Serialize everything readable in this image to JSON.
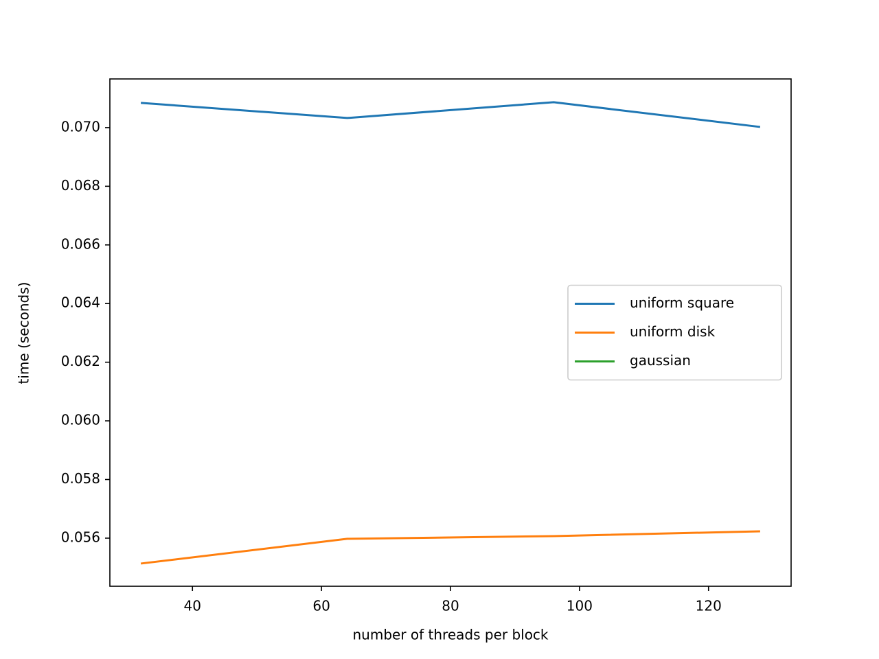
{
  "chart_data": {
    "type": "line",
    "xlabel": "number of threads per block",
    "ylabel": "time (seconds)",
    "x": [
      32,
      64,
      96,
      128
    ],
    "series": [
      {
        "name": "uniform square",
        "color": "#1f77b4",
        "values": [
          0.070843,
          0.070328,
          0.070866,
          0.070023
        ]
      },
      {
        "name": "uniform disk",
        "color": "#ff7f0e",
        "values": [
          0.055134,
          0.055977,
          0.05607,
          0.056234
        ]
      },
      {
        "name": "gaussian",
        "color": "#2ca02c",
        "values": [
          null,
          null,
          null,
          null
        ]
      }
    ],
    "xlim": [
      27.2,
      132.8
    ],
    "xticks": [
      40,
      60,
      80,
      100,
      120
    ],
    "ylim": [
      0.05436,
      0.07166
    ],
    "yticks": [
      {
        "value": 0.056,
        "label": "0.056"
      },
      {
        "value": 0.058,
        "label": "0.058"
      },
      {
        "value": 0.06,
        "label": "0.060"
      },
      {
        "value": 0.062,
        "label": "0.062"
      },
      {
        "value": 0.064,
        "label": "0.064"
      },
      {
        "value": 0.066,
        "label": "0.066"
      },
      {
        "value": 0.068,
        "label": "0.068"
      },
      {
        "value": 0.07,
        "label": "0.070"
      }
    ],
    "grid": false,
    "legend": "center right"
  }
}
